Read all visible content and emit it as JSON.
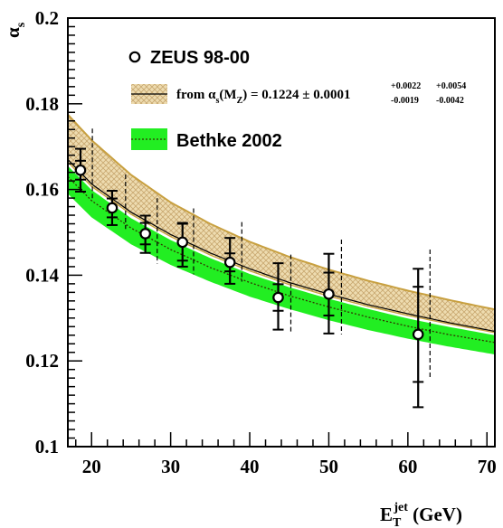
{
  "chart_data": {
    "type": "scatter",
    "xlabel": {
      "main": "E",
      "sub": "T",
      "sup": "jet",
      "unit": " (GeV)"
    },
    "ylabel": {
      "main": "α",
      "sub": "s"
    },
    "xlim": [
      17,
      71
    ],
    "ylim": [
      0.1,
      0.2
    ],
    "xticks": [
      20,
      30,
      40,
      50,
      60,
      70
    ],
    "yticks": [
      0.1,
      0.12,
      0.14,
      0.16,
      0.18,
      0.2
    ],
    "ytick_labels": [
      "0.1",
      "0.12",
      "0.14",
      "0.16",
      "0.18",
      "0.2"
    ],
    "series": [
      {
        "name": "ZEUS 98-00",
        "x": [
          18.6,
          22.6,
          26.8,
          31.5,
          37.5,
          43.6,
          50.0,
          61.3
        ],
        "y": [
          0.1645,
          0.1557,
          0.1497,
          0.1477,
          0.143,
          0.1348,
          0.1356,
          0.1262
        ],
        "stat_err": [
          0.0022,
          0.0022,
          0.0025,
          0.0043,
          0.0021,
          0.0031,
          0.005,
          0.0111
        ],
        "tot_err_up": [
          0.005,
          0.004,
          0.0042,
          0.0045,
          0.0057,
          0.008,
          0.0094,
          0.0153
        ],
        "tot_err_down": [
          0.005,
          0.004,
          0.0045,
          0.0057,
          0.005,
          0.0075,
          0.0092,
          0.017
        ],
        "syst_x": [
          20.1,
          24.3,
          28.3,
          32.9,
          39.0,
          45.2,
          51.6,
          62.8
        ],
        "syst_hi": [
          0.1742,
          0.1635,
          0.158,
          0.1556,
          0.1524,
          0.1448,
          0.1483,
          0.146
        ],
        "syst_lo": [
          0.1573,
          0.1508,
          0.1427,
          0.1402,
          0.1385,
          0.1268,
          0.1262,
          0.1158
        ]
      },
      {
        "name": "from αs(MZ) = 0.1224 ± 0.0001",
        "x": [
          17,
          20,
          25,
          30,
          35,
          40,
          45,
          50,
          55,
          60,
          65,
          71
        ],
        "central": [
          0.167,
          0.1613,
          0.1547,
          0.1495,
          0.1452,
          0.1415,
          0.1383,
          0.1356,
          0.1331,
          0.131,
          0.129,
          0.1269
        ],
        "upper": [
          0.1775,
          0.1715,
          0.1634,
          0.157,
          0.152,
          0.1478,
          0.1443,
          0.1413,
          0.1387,
          0.1364,
          0.1343,
          0.132
        ],
        "lower": [
          0.1664,
          0.1607,
          0.1542,
          0.149,
          0.1447,
          0.141,
          0.1378,
          0.1351,
          0.1327,
          0.1306,
          0.1287,
          0.1266
        ]
      },
      {
        "name": "Bethke 2002",
        "x": [
          17,
          20,
          25,
          30,
          35,
          40,
          45,
          50,
          55,
          60,
          65,
          71
        ],
        "central": [
          0.163,
          0.1574,
          0.151,
          0.146,
          0.1418,
          0.1383,
          0.1352,
          0.1326,
          0.1302,
          0.1281,
          0.1262,
          0.1243
        ],
        "upper": [
          0.1655,
          0.1599,
          0.1533,
          0.1482,
          0.144,
          0.1403,
          0.1372,
          0.1345,
          0.1321,
          0.1299,
          0.128,
          0.126
        ],
        "lower": [
          0.159,
          0.1535,
          0.1472,
          0.1424,
          0.1385,
          0.135,
          0.1321,
          0.1295,
          0.1272,
          0.1252,
          0.1234,
          0.1215
        ]
      }
    ],
    "legend": {
      "placement": "top-right",
      "entries": [
        {
          "text": "ZEUS 98-00"
        },
        {
          "text_parts": [
            "from α",
            "s",
            "(M",
            "Z",
            ") = 0.1224 ± 0.0001"
          ],
          "sys_up": "+0.0022",
          "sys_down": "-0.0019",
          "th_up": "+0.0054",
          "th_down": "-0.0042"
        },
        {
          "text": "Bethke 2002"
        }
      ]
    },
    "colors": {
      "band_fill": "#eedcb0",
      "band_hatch": "#c8a870",
      "band_edge": "#c8a040",
      "bethke": "#22ee22",
      "bethke_dots": "#333300"
    }
  }
}
